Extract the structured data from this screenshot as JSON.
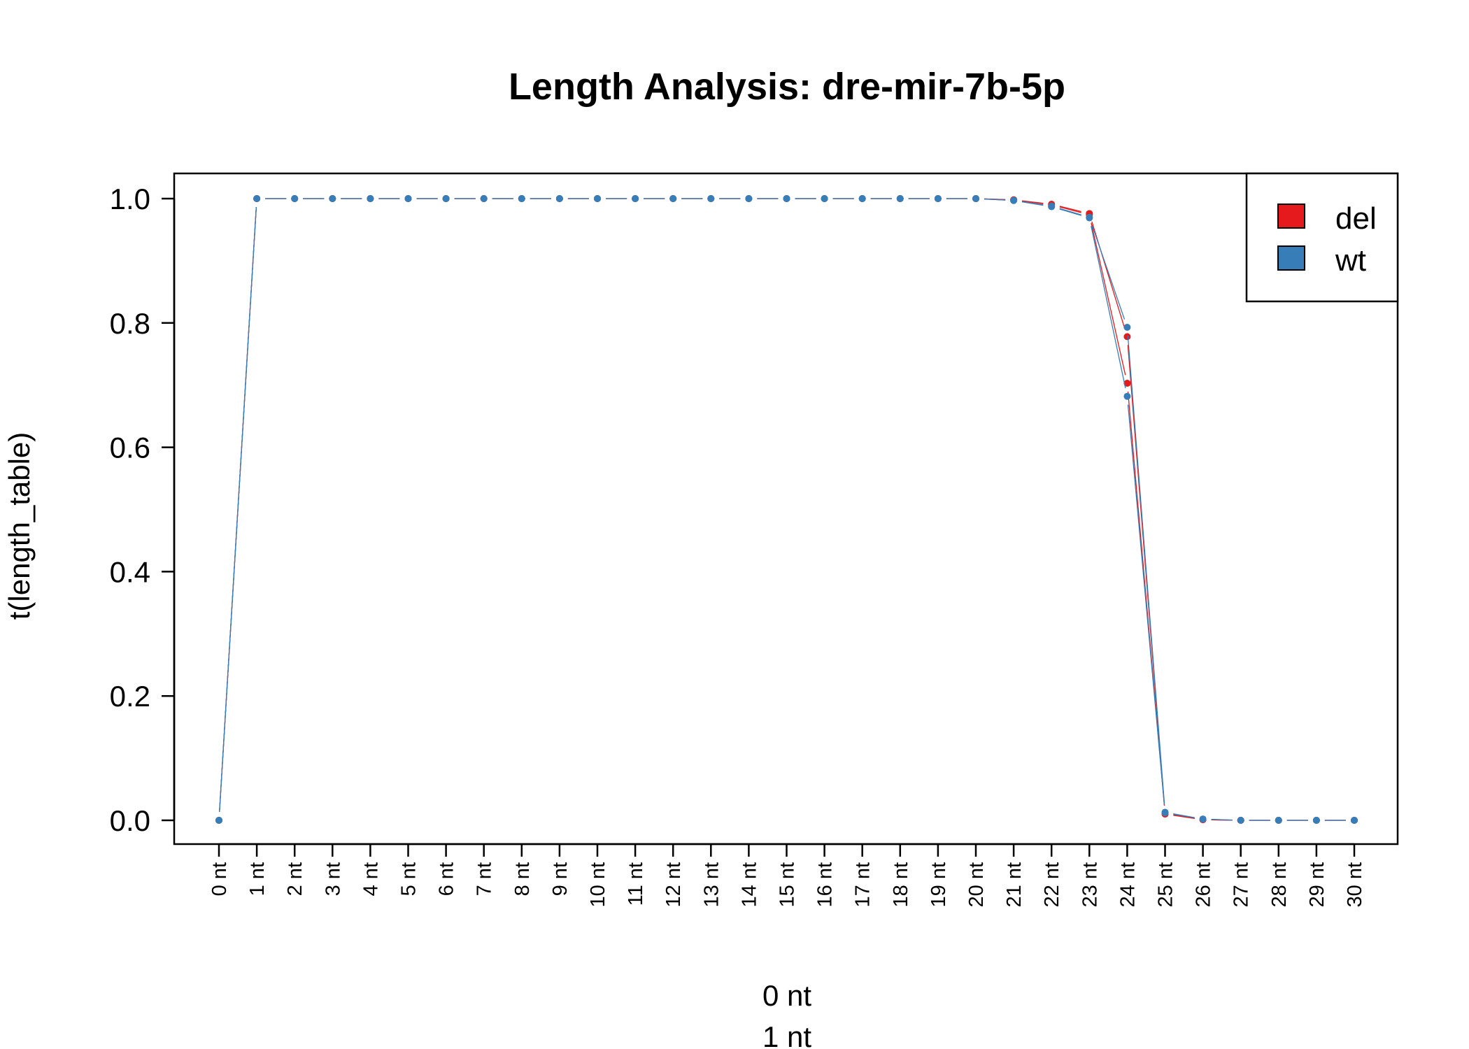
{
  "chart_data": {
    "type": "line",
    "title": "Length Analysis: dre-mir-7b-5p",
    "xlabel": "0 nt",
    "xlabel_line2": "1 nt",
    "ylabel": "t(length_table)",
    "ylim": [
      0,
      1.0
    ],
    "yticks": [
      "0.0",
      "0.2",
      "0.4",
      "0.6",
      "0.8",
      "1.0"
    ],
    "categories": [
      "0 nt",
      "1 nt",
      "2 nt",
      "3 nt",
      "4 nt",
      "5 nt",
      "6 nt",
      "7 nt",
      "8 nt",
      "9 nt",
      "10 nt",
      "11 nt",
      "12 nt",
      "13 nt",
      "14 nt",
      "15 nt",
      "16 nt",
      "17 nt",
      "18 nt",
      "19 nt",
      "20 nt",
      "21 nt",
      "22 nt",
      "23 nt",
      "24 nt",
      "25 nt",
      "26 nt",
      "27 nt",
      "28 nt",
      "29 nt",
      "30 nt"
    ],
    "series": [
      {
        "name": "del",
        "color": "#E41A1C",
        "values": [
          0,
          1,
          1,
          1,
          1,
          1,
          1,
          1,
          1,
          1,
          1,
          1,
          1,
          1,
          1,
          1,
          1,
          1,
          1,
          1,
          1,
          0.998,
          0.991,
          0.976,
          0.778,
          0.01,
          0.001,
          0,
          0,
          0,
          0
        ]
      },
      {
        "name": "del",
        "color": "#E41A1C",
        "values": [
          0,
          1,
          1,
          1,
          1,
          1,
          1,
          1,
          1,
          1,
          1,
          1,
          1,
          1,
          1,
          1,
          1,
          1,
          1,
          1,
          1,
          0.998,
          0.99,
          0.974,
          0.703,
          0.011,
          0.001,
          0,
          0,
          0,
          0
        ]
      },
      {
        "name": "wt",
        "color": "#377EB8",
        "values": [
          0,
          1,
          1,
          1,
          1,
          1,
          1,
          1,
          1,
          1,
          1,
          1,
          1,
          1,
          1,
          1,
          1,
          1,
          1,
          1,
          1,
          0.997,
          0.988,
          0.97,
          0.793,
          0.013,
          0.002,
          0,
          0,
          0,
          0
        ]
      },
      {
        "name": "wt",
        "color": "#377EB8",
        "values": [
          0,
          1,
          1,
          1,
          1,
          1,
          1,
          1,
          1,
          1,
          1,
          1,
          1,
          1,
          1,
          1,
          1,
          1,
          1,
          1,
          1,
          0.997,
          0.987,
          0.969,
          0.682,
          0.012,
          0.002,
          0,
          0,
          0,
          0
        ]
      }
    ],
    "legend": {
      "position": "top-right",
      "entries": [
        {
          "label": "del",
          "color": "#E41A1C"
        },
        {
          "label": "wt",
          "color": "#377EB8"
        }
      ]
    }
  }
}
